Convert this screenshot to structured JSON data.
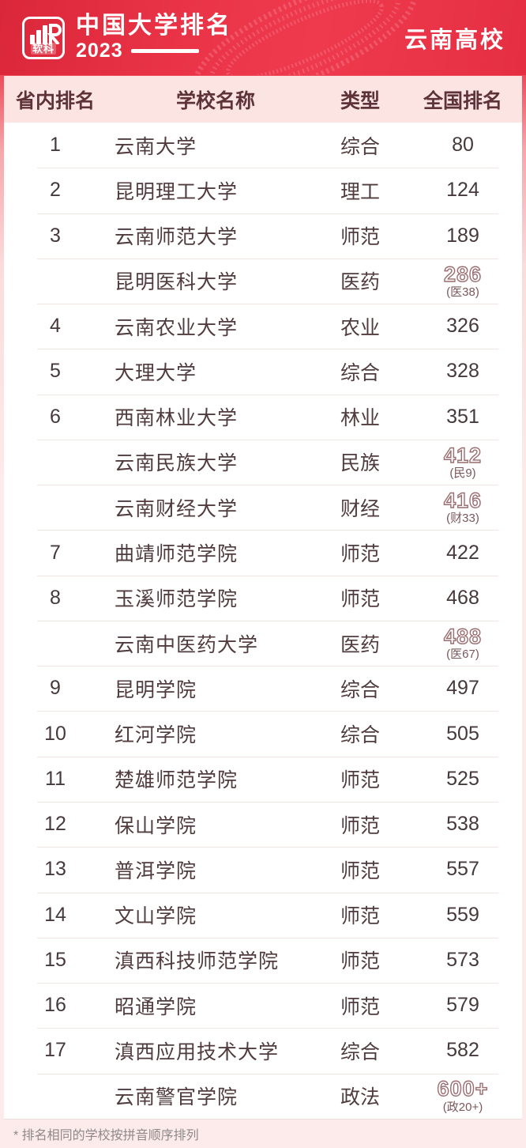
{
  "header": {
    "logo_text": "软科",
    "title": "中国大学排名",
    "year": "2023",
    "badge": "云南高校"
  },
  "table": {
    "headers": [
      "省内排名",
      "学校名称",
      "类型",
      "全国排名"
    ],
    "rows": [
      {
        "province_rank": "1",
        "name": "云南大学",
        "type": "综合",
        "national_rank": "80",
        "national_sub": "",
        "outlined": false
      },
      {
        "province_rank": "2",
        "name": "昆明理工大学",
        "type": "理工",
        "national_rank": "124",
        "national_sub": "",
        "outlined": false
      },
      {
        "province_rank": "3",
        "name": "云南师范大学",
        "type": "师范",
        "national_rank": "189",
        "national_sub": "",
        "outlined": false
      },
      {
        "province_rank": "",
        "name": "昆明医科大学",
        "type": "医药",
        "national_rank": "286",
        "national_sub": "(医38)",
        "outlined": true
      },
      {
        "province_rank": "4",
        "name": "云南农业大学",
        "type": "农业",
        "national_rank": "326",
        "national_sub": "",
        "outlined": false
      },
      {
        "province_rank": "5",
        "name": "大理大学",
        "type": "综合",
        "national_rank": "328",
        "national_sub": "",
        "outlined": false
      },
      {
        "province_rank": "6",
        "name": "西南林业大学",
        "type": "林业",
        "national_rank": "351",
        "national_sub": "",
        "outlined": false
      },
      {
        "province_rank": "",
        "name": "云南民族大学",
        "type": "民族",
        "national_rank": "412",
        "national_sub": "(民9)",
        "outlined": true
      },
      {
        "province_rank": "",
        "name": "云南财经大学",
        "type": "财经",
        "national_rank": "416",
        "national_sub": "(财33)",
        "outlined": true
      },
      {
        "province_rank": "7",
        "name": "曲靖师范学院",
        "type": "师范",
        "national_rank": "422",
        "national_sub": "",
        "outlined": false
      },
      {
        "province_rank": "8",
        "name": "玉溪师范学院",
        "type": "师范",
        "national_rank": "468",
        "national_sub": "",
        "outlined": false
      },
      {
        "province_rank": "",
        "name": "云南中医药大学",
        "type": "医药",
        "national_rank": "488",
        "national_sub": "(医67)",
        "outlined": true
      },
      {
        "province_rank": "9",
        "name": "昆明学院",
        "type": "综合",
        "national_rank": "497",
        "national_sub": "",
        "outlined": false
      },
      {
        "province_rank": "10",
        "name": "红河学院",
        "type": "综合",
        "national_rank": "505",
        "national_sub": "",
        "outlined": false
      },
      {
        "province_rank": "11",
        "name": "楚雄师范学院",
        "type": "师范",
        "national_rank": "525",
        "national_sub": "",
        "outlined": false
      },
      {
        "province_rank": "12",
        "name": "保山学院",
        "type": "师范",
        "national_rank": "538",
        "national_sub": "",
        "outlined": false
      },
      {
        "province_rank": "13",
        "name": "普洱学院",
        "type": "师范",
        "national_rank": "557",
        "national_sub": "",
        "outlined": false
      },
      {
        "province_rank": "14",
        "name": "文山学院",
        "type": "师范",
        "national_rank": "559",
        "national_sub": "",
        "outlined": false
      },
      {
        "province_rank": "15",
        "name": "滇西科技师范学院",
        "type": "师范",
        "national_rank": "573",
        "national_sub": "",
        "outlined": false
      },
      {
        "province_rank": "16",
        "name": "昭通学院",
        "type": "师范",
        "national_rank": "579",
        "national_sub": "",
        "outlined": false
      },
      {
        "province_rank": "17",
        "name": "滇西应用技术大学",
        "type": "综合",
        "national_rank": "582",
        "national_sub": "",
        "outlined": false
      },
      {
        "province_rank": "",
        "name": "云南警官学院",
        "type": "政法",
        "national_rank": "600+",
        "national_sub": "(政20+)",
        "outlined": true
      }
    ]
  },
  "footnote": "* 排名相同的学校按拼音顺序排列",
  "colors": {
    "header_red": "#ea3347",
    "table_header_bg": "#fce4e3",
    "header_text": "#5d3338",
    "row_text": "#503b3e",
    "outline_number": "#9a6e70",
    "footnote_text": "#8f8a8a"
  },
  "chart_data": {
    "type": "table",
    "title": "中国大学排名 2023 — 云南高校",
    "columns": [
      "省内排名",
      "学校名称",
      "类型",
      "全国排名"
    ],
    "rows": [
      [
        "1",
        "云南大学",
        "综合",
        "80"
      ],
      [
        "2",
        "昆明理工大学",
        "理工",
        "124"
      ],
      [
        "3",
        "云南师范大学",
        "师范",
        "189"
      ],
      [
        "",
        "昆明医科大学",
        "医药",
        "286 (医38)"
      ],
      [
        "4",
        "云南农业大学",
        "农业",
        "326"
      ],
      [
        "5",
        "大理大学",
        "综合",
        "328"
      ],
      [
        "6",
        "西南林业大学",
        "林业",
        "351"
      ],
      [
        "",
        "云南民族大学",
        "民族",
        "412 (民9)"
      ],
      [
        "",
        "云南财经大学",
        "财经",
        "416 (财33)"
      ],
      [
        "7",
        "曲靖师范学院",
        "师范",
        "422"
      ],
      [
        "8",
        "玉溪师范学院",
        "师范",
        "468"
      ],
      [
        "",
        "云南中医药大学",
        "医药",
        "488 (医67)"
      ],
      [
        "9",
        "昆明学院",
        "综合",
        "497"
      ],
      [
        "10",
        "红河学院",
        "综合",
        "505"
      ],
      [
        "11",
        "楚雄师范学院",
        "师范",
        "525"
      ],
      [
        "12",
        "保山学院",
        "师范",
        "538"
      ],
      [
        "13",
        "普洱学院",
        "师范",
        "557"
      ],
      [
        "14",
        "文山学院",
        "师范",
        "559"
      ],
      [
        "15",
        "滇西科技师范学院",
        "师范",
        "573"
      ],
      [
        "16",
        "昭通学院",
        "师范",
        "579"
      ],
      [
        "17",
        "滇西应用技术大学",
        "综合",
        "582"
      ],
      [
        "",
        "云南警官学院",
        "政法",
        "600+ (政20+)"
      ]
    ],
    "footnote": "* 排名相同的学校按拼音顺序排列"
  }
}
